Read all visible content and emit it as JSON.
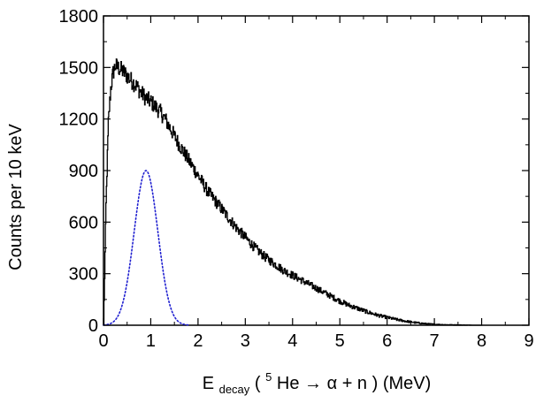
{
  "chart_data": {
    "type": "line",
    "xlabel": {
      "prefix": "E",
      "subscript": "decay",
      "open": "(",
      "superscript": "5",
      "reaction": "He → α + n",
      "close": ") (MeV)"
    },
    "ylabel": "Counts per 10 keV",
    "xlim": [
      0,
      9
    ],
    "ylim": [
      0,
      1800
    ],
    "x_ticks": [
      "0",
      "1",
      "2",
      "3",
      "4",
      "5",
      "6",
      "7",
      "8",
      "9"
    ],
    "y_ticks": [
      "0",
      "300",
      "600",
      "900",
      "1200",
      "1500",
      "1800"
    ],
    "grid": false,
    "legend": "none",
    "series": [
      {
        "style": "solid-histogram",
        "color": "#000000",
        "x": [
          0.0,
          0.05,
          0.1,
          0.15,
          0.2,
          0.25,
          0.3,
          0.4,
          0.5,
          0.6,
          0.7,
          0.8,
          0.9,
          1.0,
          1.1,
          1.2,
          1.3,
          1.4,
          1.5,
          1.6,
          1.8,
          2.0,
          2.2,
          2.4,
          2.6,
          2.8,
          3.0,
          3.2,
          3.4,
          3.6,
          3.8,
          4.0,
          4.2,
          4.4,
          4.6,
          4.8,
          5.0,
          5.2,
          5.4,
          5.6,
          5.8,
          6.0,
          6.2,
          6.4,
          6.6,
          6.8,
          7.0,
          7.2,
          7.4,
          7.6,
          7.8,
          8.0
        ],
        "y": [
          0,
          700,
          1180,
          1380,
          1470,
          1510,
          1500,
          1480,
          1450,
          1420,
          1390,
          1350,
          1320,
          1300,
          1270,
          1240,
          1200,
          1150,
          1100,
          1050,
          960,
          870,
          780,
          710,
          640,
          570,
          510,
          450,
          400,
          360,
          320,
          290,
          260,
          230,
          200,
          170,
          140,
          115,
          95,
          75,
          58,
          45,
          33,
          23,
          15,
          9,
          5,
          3,
          2,
          1,
          0,
          0
        ]
      },
      {
        "style": "dotted",
        "color": "#1f1fd0",
        "shape": "gaussian",
        "amplitude": 900,
        "center": 0.9,
        "sigma": 0.25,
        "x_range": [
          0.0,
          1.8
        ]
      }
    ]
  }
}
